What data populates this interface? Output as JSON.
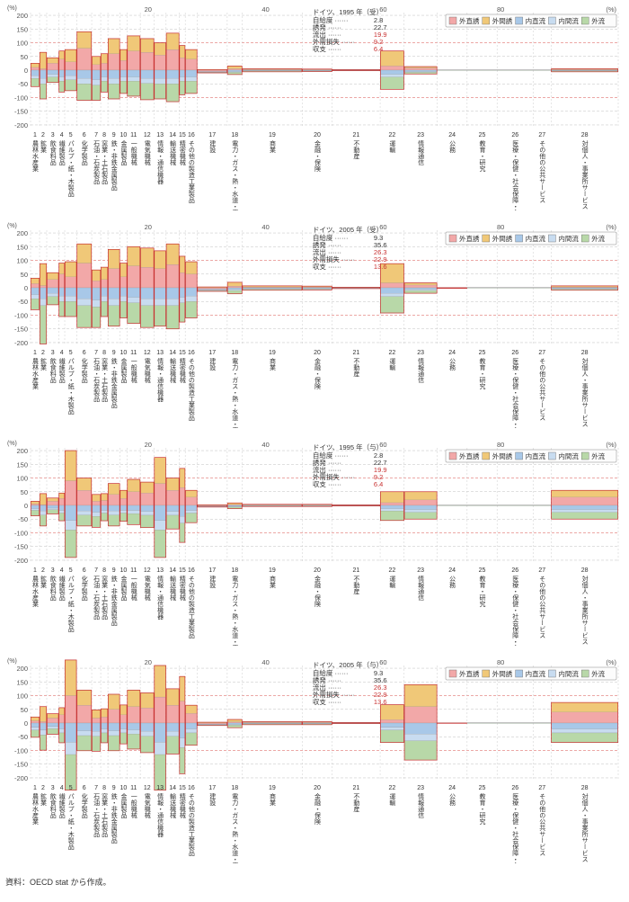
{
  "source_text": "資料：OECD stat から作成。",
  "y_unit": "(%)",
  "x_unit": "(%)",
  "y_ticks": [
    200,
    150,
    100,
    50,
    0,
    -50,
    -100,
    -150,
    -200
  ],
  "x_ticks": [
    20,
    40,
    60,
    80
  ],
  "ylim": [
    -210,
    210
  ],
  "colors": {
    "grid_major": "#d0d0d0",
    "grid_dash": "#c0c0c0",
    "ref_red": "#d9534f",
    "axis": "#666",
    "outline": "#c83232",
    "series": {
      "外直誘": "#f2a8a8",
      "外間誘": "#f0c878",
      "内直流": "#a8c8e8",
      "内間流": "#c8dcf0",
      "外流": "#b8d8a8"
    }
  },
  "legend_items": [
    "外直誘",
    "外間誘",
    "内直流",
    "内間流",
    "外流"
  ],
  "categories": [
    {
      "n": 1,
      "label": "農林水産業"
    },
    {
      "n": 2,
      "label": "鉱業"
    },
    {
      "n": 3,
      "label": "飲食料品"
    },
    {
      "n": 4,
      "label": "繊維製品"
    },
    {
      "n": 5,
      "label": "パルプ・紙・木製品"
    },
    {
      "n": 6,
      "label": "化学製品"
    },
    {
      "n": 7,
      "label": "石油・石炭製品"
    },
    {
      "n": 8,
      "label": "窯業・土石製品"
    },
    {
      "n": 9,
      "label": "鉄・非鉄金属製品"
    },
    {
      "n": 10,
      "label": "金属製品"
    },
    {
      "n": 11,
      "label": "一般機械"
    },
    {
      "n": 12,
      "label": "電気機械"
    },
    {
      "n": 13,
      "label": "情報・通信機器"
    },
    {
      "n": 14,
      "label": "輸送機械"
    },
    {
      "n": 15,
      "label": "精密機械"
    },
    {
      "n": 16,
      "label": "その他の製造工業製品"
    },
    {
      "n": 17,
      "label": "建設"
    },
    {
      "n": 18,
      "label": "電力・ガス・熱・水道・廃棄物"
    },
    {
      "n": 19,
      "label": "商業"
    },
    {
      "n": 20,
      "label": "金融・保険"
    },
    {
      "n": 21,
      "label": "不動産"
    },
    {
      "n": 22,
      "label": "運輸"
    },
    {
      "n": 23,
      "label": "情報通信"
    },
    {
      "n": 24,
      "label": "公務"
    },
    {
      "n": 25,
      "label": "教育・研究"
    },
    {
      "n": 26,
      "label": "医療・保健・社会保障・介護"
    },
    {
      "n": 27,
      "label": "その他の公共サービス"
    },
    {
      "n": 28,
      "label": "対個人・事業所サービス"
    }
  ],
  "widths": [
    1.5,
    1.2,
    2.0,
    1.0,
    2.0,
    2.5,
    1.5,
    1.2,
    2.0,
    1.2,
    2.2,
    2.3,
    2.0,
    2.2,
    1.0,
    2.0,
    5.0,
    2.5,
    10.0,
    5.0,
    8.0,
    4.0,
    5.5,
    5.0,
    5.0,
    6.0,
    3.0,
    11.2
  ],
  "panels": [
    {
      "title": "ドイツ、1995 年（受）",
      "stats": [
        {
          "k": "自給度",
          "v": "2.8",
          "c": "#333"
        },
        {
          "k": "誘発",
          "v": "22.7",
          "c": "#333"
        },
        {
          "k": "流出",
          "v": "19.9",
          "c": "#c83232"
        },
        {
          "k": "外需損失",
          "v": "9.2",
          "c": "#c83232"
        },
        {
          "k": "収支",
          "v": "6.4",
          "c": "#c83232"
        }
      ],
      "rows": [
        {
          "s": "外直誘",
          "d": [
            10,
            5,
            25,
            40,
            30,
            80,
            20,
            25,
            60,
            35,
            70,
            65,
            55,
            75,
            45,
            40,
            -5,
            5,
            2,
            2,
            1,
            15,
            8,
            0,
            0,
            0,
            0,
            2
          ]
        },
        {
          "s": "外間誘",
          "d": [
            15,
            60,
            20,
            30,
            45,
            60,
            30,
            35,
            55,
            40,
            55,
            50,
            45,
            60,
            45,
            35,
            2,
            10,
            3,
            2,
            1,
            55,
            5,
            0,
            0,
            0,
            0,
            3
          ]
        },
        {
          "s": "内直流",
          "d": [
            -20,
            -30,
            -15,
            -25,
            -20,
            -30,
            -35,
            -25,
            -30,
            -25,
            -25,
            -30,
            -30,
            -30,
            -25,
            -25,
            -2,
            -5,
            -2,
            -2,
            -1,
            -15,
            -5,
            0,
            0,
            0,
            0,
            -2
          ]
        },
        {
          "s": "内間流",
          "d": [
            -10,
            -20,
            -10,
            -15,
            -15,
            -20,
            -20,
            -15,
            -20,
            -15,
            -15,
            -18,
            -20,
            -20,
            -15,
            -15,
            -1,
            -3,
            -1,
            -1,
            0,
            -10,
            -3,
            0,
            0,
            0,
            0,
            -1
          ]
        },
        {
          "s": "外流",
          "d": [
            -30,
            -55,
            -20,
            -40,
            -40,
            -60,
            -55,
            -40,
            -55,
            -45,
            -55,
            -60,
            -55,
            -65,
            -50,
            -45,
            -2,
            -8,
            -3,
            -2,
            -1,
            -45,
            -6,
            0,
            0,
            0,
            0,
            -3
          ]
        }
      ]
    },
    {
      "title": "ドイツ、2005 年（受）",
      "stats": [
        {
          "k": "自給度",
          "v": "9.3",
          "c": "#333"
        },
        {
          "k": "誘発",
          "v": "35.6",
          "c": "#333"
        },
        {
          "k": "流出",
          "v": "26.3",
          "c": "#c83232"
        },
        {
          "k": "外需損失",
          "v": "22.9",
          "c": "#c83232"
        },
        {
          "k": "収支",
          "v": "13.6",
          "c": "#c83232"
        }
      ],
      "rows": [
        {
          "s": "外直誘",
          "d": [
            15,
            8,
            30,
            50,
            40,
            90,
            25,
            30,
            70,
            40,
            80,
            75,
            70,
            85,
            55,
            50,
            -5,
            6,
            3,
            3,
            1,
            18,
            10,
            -2,
            0,
            0,
            0,
            3
          ]
        },
        {
          "s": "外間誘",
          "d": [
            20,
            80,
            25,
            40,
            55,
            70,
            40,
            45,
            70,
            50,
            70,
            70,
            65,
            75,
            60,
            45,
            3,
            14,
            4,
            3,
            1,
            70,
            8,
            0,
            0,
            0,
            0,
            4
          ]
        },
        {
          "s": "内直流",
          "d": [
            -25,
            -40,
            -20,
            -30,
            -30,
            -40,
            -45,
            -30,
            -40,
            -30,
            -35,
            -40,
            -40,
            -40,
            -35,
            -30,
            -3,
            -6,
            -3,
            -3,
            -1,
            -20,
            -6,
            0,
            0,
            0,
            0,
            -3
          ]
        },
        {
          "s": "内間流",
          "d": [
            -15,
            -25,
            -12,
            -20,
            -20,
            -25,
            -25,
            -20,
            -25,
            -20,
            -20,
            -25,
            -25,
            -25,
            -20,
            -20,
            -2,
            -4,
            -2,
            -2,
            -1,
            -12,
            -4,
            0,
            0,
            0,
            0,
            -2
          ]
        },
        {
          "s": "外流",
          "d": [
            -40,
            -140,
            -30,
            -55,
            -55,
            -80,
            -75,
            -55,
            -75,
            -60,
            -75,
            -80,
            -75,
            -85,
            -70,
            -60,
            -3,
            -12,
            -4,
            -3,
            -1,
            -60,
            -10,
            0,
            0,
            0,
            0,
            -4
          ]
        }
      ]
    },
    {
      "title": "ドイツ、1995 年（与）",
      "stats": [
        {
          "k": "自給度",
          "v": "2.8",
          "c": "#333"
        },
        {
          "k": "誘発",
          "v": "22.7",
          "c": "#333"
        },
        {
          "k": "流出",
          "v": "19.9",
          "c": "#c83232"
        },
        {
          "k": "外需損失",
          "v": "9.2",
          "c": "#c83232"
        },
        {
          "k": "収支",
          "v": "6.4",
          "c": "#c83232"
        }
      ],
      "rows": [
        {
          "s": "外直誘",
          "d": [
            5,
            3,
            15,
            25,
            90,
            55,
            15,
            18,
            40,
            25,
            50,
            45,
            80,
            55,
            65,
            30,
            -3,
            3,
            2,
            2,
            1,
            10,
            20,
            0,
            0,
            0,
            0,
            30
          ]
        },
        {
          "s": "外間誘",
          "d": [
            10,
            40,
            12,
            20,
            110,
            45,
            25,
            25,
            40,
            30,
            45,
            40,
            95,
            45,
            70,
            25,
            2,
            6,
            2,
            2,
            1,
            40,
            30,
            0,
            0,
            0,
            0,
            25
          ]
        },
        {
          "s": "内直流",
          "d": [
            -12,
            -20,
            -10,
            -18,
            -55,
            -20,
            -25,
            -18,
            -20,
            -18,
            -18,
            -22,
            -55,
            -22,
            -40,
            -18,
            -1,
            -4,
            -1,
            -1,
            -1,
            -12,
            -15,
            0,
            0,
            0,
            0,
            -15
          ]
        },
        {
          "s": "内間流",
          "d": [
            -6,
            -15,
            -6,
            -10,
            -35,
            -15,
            -15,
            -10,
            -15,
            -10,
            -12,
            -14,
            -35,
            -14,
            -25,
            -10,
            -1,
            -2,
            -1,
            -1,
            0,
            -8,
            -10,
            0,
            0,
            0,
            0,
            -10
          ]
        },
        {
          "s": "外流",
          "d": [
            -20,
            -40,
            -15,
            -28,
            -100,
            -40,
            -40,
            -28,
            -40,
            -30,
            -40,
            -45,
            -100,
            -50,
            -70,
            -35,
            -1,
            -6,
            -2,
            -2,
            -1,
            -35,
            -25,
            0,
            0,
            0,
            0,
            -25
          ]
        }
      ]
    },
    {
      "title": "ドイツ、2005 年（与）",
      "stats": [
        {
          "k": "自給度",
          "v": "9.3",
          "c": "#333"
        },
        {
          "k": "誘発",
          "v": "35.6",
          "c": "#333"
        },
        {
          "k": "流出",
          "v": "26.3",
          "c": "#c83232"
        },
        {
          "k": "外需損失",
          "v": "22.9",
          "c": "#c83232"
        },
        {
          "k": "収支",
          "v": "13.6",
          "c": "#c83232"
        }
      ],
      "rows": [
        {
          "s": "外直誘",
          "d": [
            8,
            5,
            18,
            30,
            100,
            65,
            18,
            22,
            50,
            30,
            60,
            55,
            95,
            65,
            80,
            35,
            -4,
            4,
            2,
            2,
            1,
            12,
            60,
            -1,
            0,
            0,
            0,
            40
          ]
        },
        {
          "s": "外間誘",
          "d": [
            14,
            55,
            16,
            26,
            130,
            55,
            30,
            30,
            55,
            36,
            60,
            55,
            115,
            60,
            90,
            30,
            3,
            9,
            3,
            3,
            1,
            55,
            80,
            0,
            0,
            0,
            0,
            35
          ]
        },
        {
          "s": "内直流",
          "d": [
            -16,
            -26,
            -13,
            -22,
            -70,
            -28,
            -30,
            -22,
            -28,
            -22,
            -25,
            -30,
            -70,
            -30,
            -55,
            -22,
            -2,
            -5,
            -2,
            -2,
            -1,
            -16,
            -40,
            0,
            0,
            0,
            0,
            -22
          ]
        },
        {
          "s": "内間流",
          "d": [
            -10,
            -18,
            -8,
            -14,
            -45,
            -18,
            -18,
            -14,
            -18,
            -14,
            -15,
            -18,
            -45,
            -18,
            -35,
            -14,
            -1,
            -3,
            -1,
            -1,
            0,
            -10,
            -25,
            0,
            0,
            0,
            0,
            -14
          ]
        },
        {
          "s": "外流",
          "d": [
            -26,
            -55,
            -20,
            -36,
            -130,
            -55,
            -55,
            -36,
            -55,
            -40,
            -55,
            -60,
            -130,
            -65,
            -95,
            -45,
            -2,
            -9,
            -3,
            -3,
            -1,
            -45,
            -70,
            0,
            0,
            0,
            0,
            -35
          ]
        }
      ]
    }
  ]
}
